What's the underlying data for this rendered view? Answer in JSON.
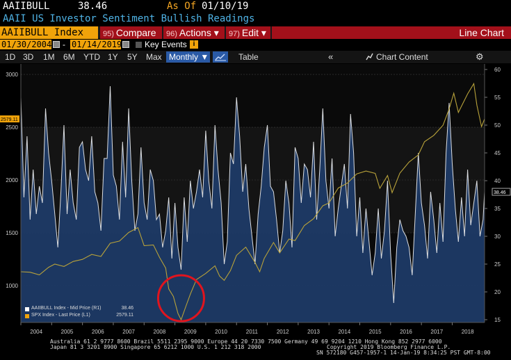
{
  "header": {
    "ticker": "AAIIBULL",
    "price": "38.46",
    "asof_label": "As Of",
    "asof_date": "01/10/19",
    "title": "AAII US Investor Sentiment Bullish Readings"
  },
  "toolbar": {
    "security": "AAIIBULL Index",
    "compare_num": "95)",
    "compare_label": "Compare",
    "actions_num": "96)",
    "actions_label": "Actions ▾",
    "edit_num": "97)",
    "edit_label": "Edit ▾",
    "chart_type_label": "Line Chart"
  },
  "daterow": {
    "start_date": "01/30/2004",
    "end_date": "01/14/2019",
    "dash": "-",
    "key_events_label": "Key Events",
    "key_info": "i"
  },
  "rangerow": {
    "ranges": [
      "1D",
      "3D",
      "1M",
      "6M",
      "YTD",
      "1Y",
      "5Y",
      "Max"
    ],
    "frequency": "Monthly ▼",
    "table_label": "Table",
    "collapse_label": "«",
    "chart_content_label": "Chart Content",
    "gear_label": "⚙"
  },
  "colors": {
    "bull_fill": "#1d3a66",
    "bull_line": "#ffffff",
    "spx_line": "#b8a23a",
    "accent_orange": "#f0a30a",
    "accent_red": "#a3101a",
    "circle": "#e0141e"
  },
  "legend": [
    {
      "label": "AAIIBULL Index - Mid Price (R1)",
      "value": "38.46",
      "color": "#ffffff"
    },
    {
      "label": "SPX Index - Last Price (L1)",
      "value": "2579.11",
      "color": "#f0a30a"
    }
  ],
  "chart_data": {
    "type": "line",
    "x_range": [
      2004.0,
      2019.05
    ],
    "x_tick_labels": [
      "2004",
      "2005",
      "2006",
      "2007",
      "2008",
      "2009",
      "2010",
      "2011",
      "2012",
      "2013",
      "2014",
      "2015",
      "2016",
      "2017",
      "2018"
    ],
    "left_axis": {
      "range": [
        650,
        3100
      ],
      "ticks": [
        1000,
        1500,
        2000,
        2500,
        3000
      ],
      "current_label": "2579.11"
    },
    "right_axis": {
      "range": [
        14.5,
        61
      ],
      "ticks": [
        15,
        20,
        25,
        30,
        35,
        40,
        45,
        50,
        55,
        60
      ],
      "current_label": "38.46"
    },
    "series": [
      {
        "name": "SPX Index - Last Price (L1)",
        "axis": "left",
        "points": [
          [
            2004.0,
            1131
          ],
          [
            2004.3,
            1126
          ],
          [
            2004.6,
            1101
          ],
          [
            2004.9,
            1173
          ],
          [
            2005.1,
            1203
          ],
          [
            2005.4,
            1181
          ],
          [
            2005.7,
            1228
          ],
          [
            2006.0,
            1248
          ],
          [
            2006.3,
            1295
          ],
          [
            2006.6,
            1276
          ],
          [
            2006.9,
            1401
          ],
          [
            2007.2,
            1421
          ],
          [
            2007.5,
            1503
          ],
          [
            2007.8,
            1549
          ],
          [
            2008.0,
            1378
          ],
          [
            2008.3,
            1385
          ],
          [
            2008.5,
            1267
          ],
          [
            2008.7,
            1166
          ],
          [
            2008.8,
            968
          ],
          [
            2008.95,
            896
          ],
          [
            2009.1,
            735
          ],
          [
            2009.2,
            676
          ],
          [
            2009.35,
            798
          ],
          [
            2009.5,
            919
          ],
          [
            2009.7,
            1057
          ],
          [
            2010.0,
            1115
          ],
          [
            2010.3,
            1187
          ],
          [
            2010.45,
            1089
          ],
          [
            2010.6,
            1049
          ],
          [
            2010.8,
            1141
          ],
          [
            2011.0,
            1286
          ],
          [
            2011.3,
            1364
          ],
          [
            2011.6,
            1219
          ],
          [
            2011.75,
            1131
          ],
          [
            2011.9,
            1258
          ],
          [
            2012.2,
            1408
          ],
          [
            2012.4,
            1310
          ],
          [
            2012.7,
            1440
          ],
          [
            2012.9,
            1426
          ],
          [
            2013.2,
            1569
          ],
          [
            2013.5,
            1633
          ],
          [
            2013.8,
            1756
          ],
          [
            2014.0,
            1783
          ],
          [
            2014.3,
            1924
          ],
          [
            2014.6,
            1972
          ],
          [
            2014.9,
            2058
          ],
          [
            2015.2,
            2085
          ],
          [
            2015.5,
            2063
          ],
          [
            2015.65,
            1921
          ],
          [
            2015.9,
            2043
          ],
          [
            2016.05,
            1880
          ],
          [
            2016.3,
            2065
          ],
          [
            2016.6,
            2170
          ],
          [
            2016.9,
            2238
          ],
          [
            2017.1,
            2363
          ],
          [
            2017.4,
            2423
          ],
          [
            2017.7,
            2519
          ],
          [
            2017.9,
            2673
          ],
          [
            2018.05,
            2823
          ],
          [
            2018.2,
            2640
          ],
          [
            2018.5,
            2816
          ],
          [
            2018.7,
            2913
          ],
          [
            2018.8,
            2711
          ],
          [
            2018.95,
            2506
          ],
          [
            2019.05,
            2579
          ]
        ]
      },
      {
        "name": "AAIIBULL Index - Mid Price (R1)",
        "axis": "right",
        "points": [
          [
            2004.0,
            55
          ],
          [
            2004.1,
            37
          ],
          [
            2004.2,
            48
          ],
          [
            2004.3,
            33
          ],
          [
            2004.4,
            42
          ],
          [
            2004.5,
            34
          ],
          [
            2004.6,
            39
          ],
          [
            2004.7,
            36
          ],
          [
            2004.8,
            53
          ],
          [
            2004.9,
            45
          ],
          [
            2005.0,
            40
          ],
          [
            2005.1,
            34
          ],
          [
            2005.2,
            28
          ],
          [
            2005.3,
            38
          ],
          [
            2005.4,
            50
          ],
          [
            2005.5,
            34
          ],
          [
            2005.6,
            42
          ],
          [
            2005.7,
            36
          ],
          [
            2005.8,
            33
          ],
          [
            2005.9,
            46
          ],
          [
            2006.0,
            47
          ],
          [
            2006.1,
            42
          ],
          [
            2006.2,
            40
          ],
          [
            2006.3,
            48
          ],
          [
            2006.4,
            38
          ],
          [
            2006.5,
            36
          ],
          [
            2006.6,
            31
          ],
          [
            2006.7,
            44
          ],
          [
            2006.8,
            44
          ],
          [
            2006.9,
            57
          ],
          [
            2007.0,
            41
          ],
          [
            2007.1,
            39
          ],
          [
            2007.2,
            33
          ],
          [
            2007.3,
            47
          ],
          [
            2007.4,
            37
          ],
          [
            2007.5,
            53
          ],
          [
            2007.6,
            40
          ],
          [
            2007.7,
            31
          ],
          [
            2007.8,
            34
          ],
          [
            2007.9,
            46
          ],
          [
            2008.0,
            36
          ],
          [
            2008.1,
            33
          ],
          [
            2008.2,
            42
          ],
          [
            2008.3,
            40
          ],
          [
            2008.4,
            33
          ],
          [
            2008.5,
            34
          ],
          [
            2008.6,
            28
          ],
          [
            2008.7,
            31
          ],
          [
            2008.8,
            37
          ],
          [
            2008.9,
            26
          ],
          [
            2009.0,
            36
          ],
          [
            2009.1,
            28
          ],
          [
            2009.2,
            24
          ],
          [
            2009.3,
            37
          ],
          [
            2009.4,
            29
          ],
          [
            2009.5,
            40
          ],
          [
            2009.6,
            35
          ],
          [
            2009.7,
            38
          ],
          [
            2009.8,
            42
          ],
          [
            2009.9,
            37
          ],
          [
            2010.0,
            49
          ],
          [
            2010.1,
            40
          ],
          [
            2010.2,
            35
          ],
          [
            2010.3,
            50
          ],
          [
            2010.4,
            42
          ],
          [
            2010.5,
            36
          ],
          [
            2010.6,
            25
          ],
          [
            2010.7,
            29
          ],
          [
            2010.8,
            45
          ],
          [
            2010.9,
            43
          ],
          [
            2011.0,
            55
          ],
          [
            2011.1,
            48
          ],
          [
            2011.2,
            38
          ],
          [
            2011.3,
            43
          ],
          [
            2011.4,
            35
          ],
          [
            2011.5,
            30
          ],
          [
            2011.6,
            25
          ],
          [
            2011.7,
            34
          ],
          [
            2011.8,
            39
          ],
          [
            2011.9,
            46
          ],
          [
            2012.0,
            50
          ],
          [
            2012.1,
            39
          ],
          [
            2012.2,
            38
          ],
          [
            2012.3,
            33
          ],
          [
            2012.4,
            27
          ],
          [
            2012.5,
            31
          ],
          [
            2012.6,
            40
          ],
          [
            2012.7,
            36
          ],
          [
            2012.8,
            28
          ],
          [
            2012.9,
            46
          ],
          [
            2013.0,
            44
          ],
          [
            2013.1,
            36
          ],
          [
            2013.2,
            43
          ],
          [
            2013.3,
            42
          ],
          [
            2013.4,
            37
          ],
          [
            2013.5,
            47
          ],
          [
            2013.6,
            33
          ],
          [
            2013.7,
            42
          ],
          [
            2013.8,
            53
          ],
          [
            2013.9,
            40
          ],
          [
            2014.0,
            35
          ],
          [
            2014.1,
            44
          ],
          [
            2014.2,
            30
          ],
          [
            2014.3,
            35
          ],
          [
            2014.4,
            39
          ],
          [
            2014.5,
            43
          ],
          [
            2014.6,
            35
          ],
          [
            2014.7,
            52
          ],
          [
            2014.8,
            45
          ],
          [
            2014.9,
            30
          ],
          [
            2015.0,
            37
          ],
          [
            2015.1,
            27
          ],
          [
            2015.2,
            35
          ],
          [
            2015.3,
            29
          ],
          [
            2015.4,
            23
          ],
          [
            2015.5,
            27
          ],
          [
            2015.6,
            35
          ],
          [
            2015.7,
            26
          ],
          [
            2015.8,
            31
          ],
          [
            2015.9,
            40
          ],
          [
            2016.0,
            27
          ],
          [
            2016.1,
            18
          ],
          [
            2016.2,
            28
          ],
          [
            2016.3,
            33
          ],
          [
            2016.4,
            31
          ],
          [
            2016.5,
            30
          ],
          [
            2016.6,
            28
          ],
          [
            2016.7,
            23
          ],
          [
            2016.8,
            34
          ],
          [
            2016.9,
            45
          ],
          [
            2017.0,
            36
          ],
          [
            2017.1,
            32
          ],
          [
            2017.2,
            26
          ],
          [
            2017.3,
            38
          ],
          [
            2017.4,
            33
          ],
          [
            2017.5,
            27
          ],
          [
            2017.6,
            36
          ],
          [
            2017.7,
            29
          ],
          [
            2017.8,
            45
          ],
          [
            2017.9,
            54
          ],
          [
            2018.0,
            43
          ],
          [
            2018.1,
            35
          ],
          [
            2018.2,
            29
          ],
          [
            2018.3,
            37
          ],
          [
            2018.4,
            30
          ],
          [
            2018.5,
            42
          ],
          [
            2018.6,
            32
          ],
          [
            2018.7,
            36
          ],
          [
            2018.8,
            40
          ],
          [
            2018.9,
            30
          ],
          [
            2019.0,
            33
          ],
          [
            2019.05,
            38
          ]
        ]
      }
    ],
    "annotation": {
      "type": "circle",
      "x": 2009.2,
      "y_left": 880
    }
  },
  "footer": {
    "line1": "Australia 61 2 9777 8600 Brazil 5511 2395 9000 Europe 44 20 7330 7500 Germany 49 69 9204 1210 Hong Kong 852 2977 6000",
    "line2": "Japan 81 3 3201 8900        Singapore 65 6212 1000        U.S. 1 212 318 2000",
    "line3": "Copyright 2019 Bloomberg Finance L.P.",
    "line4": "SN 572180 G457-1957-1 14-Jan-19  8:34:25 PST  GMT-8:00"
  }
}
